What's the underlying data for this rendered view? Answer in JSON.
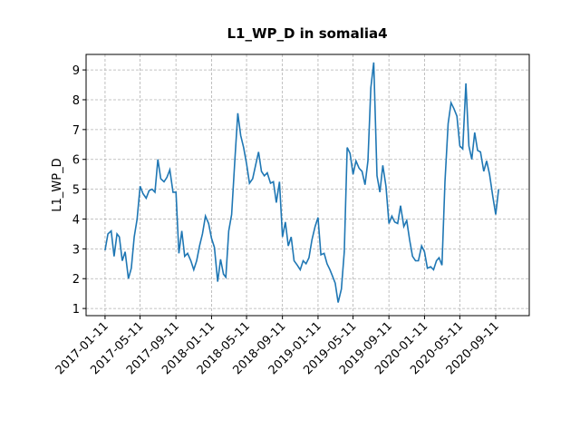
{
  "chart_data": {
    "type": "line",
    "title": "L1_WP_D in somalia4",
    "y_label": "L1_WP_D",
    "x": [
      "2017-01-11",
      "2017-01-21",
      "2017-02-01",
      "2017-02-11",
      "2017-02-21",
      "2017-03-01",
      "2017-03-11",
      "2017-03-21",
      "2017-04-01",
      "2017-04-11",
      "2017-04-21",
      "2017-05-01",
      "2017-05-11",
      "2017-05-21",
      "2017-06-01",
      "2017-06-11",
      "2017-06-21",
      "2017-07-01",
      "2017-07-11",
      "2017-07-21",
      "2017-08-01",
      "2017-08-11",
      "2017-08-21",
      "2017-09-01",
      "2017-09-11",
      "2017-09-21",
      "2017-10-01",
      "2017-10-11",
      "2017-10-21",
      "2017-11-01",
      "2017-11-11",
      "2017-11-21",
      "2017-12-01",
      "2017-12-11",
      "2017-12-21",
      "2018-01-01",
      "2018-01-11",
      "2018-01-21",
      "2018-02-01",
      "2018-02-11",
      "2018-02-21",
      "2018-03-01",
      "2018-03-11",
      "2018-03-21",
      "2018-04-01",
      "2018-04-11",
      "2018-04-21",
      "2018-05-01",
      "2018-05-11",
      "2018-05-21",
      "2018-06-01",
      "2018-06-11",
      "2018-06-21",
      "2018-07-01",
      "2018-07-11",
      "2018-07-21",
      "2018-08-01",
      "2018-08-11",
      "2018-08-21",
      "2018-09-01",
      "2018-09-11",
      "2018-09-21",
      "2018-10-01",
      "2018-10-11",
      "2018-10-21",
      "2018-11-01",
      "2018-11-11",
      "2018-11-21",
      "2018-12-01",
      "2018-12-11",
      "2018-12-21",
      "2019-01-01",
      "2019-01-11",
      "2019-01-21",
      "2019-02-01",
      "2019-02-11",
      "2019-02-21",
      "2019-03-01",
      "2019-03-11",
      "2019-03-21",
      "2019-04-01",
      "2019-04-11",
      "2019-04-21",
      "2019-05-01",
      "2019-05-11",
      "2019-05-21",
      "2019-06-01",
      "2019-06-11",
      "2019-06-21",
      "2019-07-01",
      "2019-07-11",
      "2019-07-21",
      "2019-08-01",
      "2019-08-11",
      "2019-08-21",
      "2019-09-01",
      "2019-09-11",
      "2019-09-21",
      "2019-10-01",
      "2019-10-11",
      "2019-10-21",
      "2019-11-01",
      "2019-11-11",
      "2019-11-21",
      "2019-12-01",
      "2019-12-11",
      "2019-12-21",
      "2020-01-01",
      "2020-01-11",
      "2020-01-21",
      "2020-02-01",
      "2020-02-11",
      "2020-02-21",
      "2020-03-01",
      "2020-03-11",
      "2020-03-21",
      "2020-04-01",
      "2020-04-11",
      "2020-04-21",
      "2020-05-01",
      "2020-05-11",
      "2020-05-21",
      "2020-06-01",
      "2020-06-11",
      "2020-06-21",
      "2020-07-01",
      "2020-07-11",
      "2020-07-21",
      "2020-08-01",
      "2020-08-11",
      "2020-08-21",
      "2020-09-01",
      "2020-09-11",
      "2020-09-21"
    ],
    "series": [
      {
        "name": "L1_WP_D",
        "color": "#1f77b4",
        "values": [
          2.95,
          3.5,
          3.6,
          2.75,
          3.5,
          3.4,
          2.6,
          2.9,
          2.0,
          2.35,
          3.4,
          4.0,
          5.1,
          4.85,
          4.7,
          4.95,
          5.0,
          4.9,
          6.0,
          5.35,
          5.25,
          5.4,
          5.65,
          4.9,
          4.9,
          2.85,
          3.6,
          2.75,
          2.85,
          2.6,
          2.3,
          2.6,
          3.1,
          3.5,
          4.1,
          3.85,
          3.35,
          3.05,
          1.9,
          2.65,
          2.15,
          2.05,
          3.6,
          4.15,
          6.0,
          7.55,
          6.8,
          6.4,
          5.85,
          5.2,
          5.35,
          5.8,
          6.25,
          5.6,
          5.45,
          5.55,
          5.2,
          5.25,
          4.55,
          5.25,
          3.4,
          3.9,
          3.1,
          3.4,
          2.6,
          2.45,
          2.3,
          2.6,
          2.5,
          2.7,
          3.3,
          3.75,
          4.05,
          2.8,
          2.85,
          2.5,
          2.3,
          2.1,
          1.85,
          1.2,
          1.65,
          2.9,
          6.4,
          6.2,
          5.5,
          5.95,
          5.7,
          5.6,
          5.15,
          5.95,
          8.4,
          9.25,
          5.45,
          4.9,
          5.8,
          5.1,
          3.85,
          4.1,
          3.9,
          3.85,
          4.45,
          3.75,
          3.95,
          3.3,
          2.75,
          2.6,
          2.6,
          3.1,
          2.9,
          2.35,
          2.4,
          2.3,
          2.6,
          2.7,
          2.45,
          5.25,
          7.2,
          7.9,
          7.7,
          7.45,
          6.45,
          6.35,
          8.55,
          6.45,
          6.0,
          6.9,
          6.3,
          6.25,
          5.6,
          5.95,
          5.5,
          4.75,
          4.15,
          5.0
        ]
      }
    ],
    "xlim": [
      "2016-11-07",
      "2021-01-04"
    ],
    "xticks": [
      "2017-01-11",
      "2017-05-11",
      "2017-09-11",
      "2018-01-11",
      "2018-05-11",
      "2018-09-11",
      "2019-01-11",
      "2019-05-11",
      "2019-09-11",
      "2020-01-11",
      "2020-05-11",
      "2020-09-11"
    ],
    "ylim": [
      0.76,
      9.52
    ],
    "yticks": [
      1,
      2,
      3,
      4,
      5,
      6,
      7,
      8,
      9
    ],
    "grid": true
  }
}
